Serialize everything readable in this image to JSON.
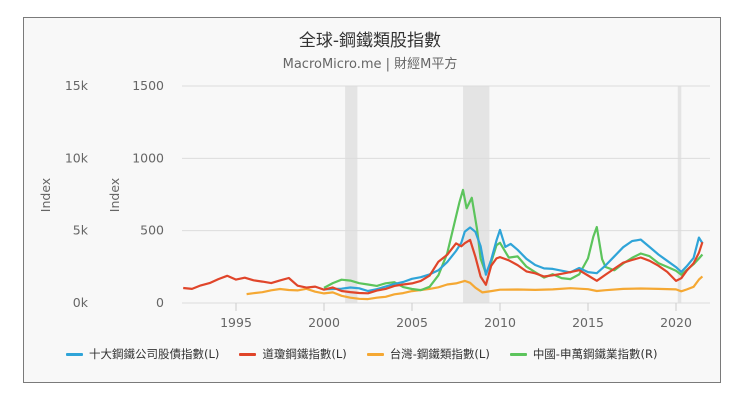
{
  "chart_data": {
    "type": "line",
    "title": "全球-鋼鐵類股指數",
    "subtitle": "MacroMicro.me | 財經M平方",
    "xlabel": "",
    "x_ticks": [
      "1995",
      "2000",
      "2005",
      "2010",
      "2015",
      "2020"
    ],
    "xlim": [
      1992,
      2021.8
    ],
    "y_axes": [
      {
        "id": "L1",
        "title": "Index",
        "ticks": [
          "0k",
          "5k",
          "10k",
          "15k"
        ],
        "range": [
          0,
          15000
        ]
      },
      {
        "id": "L2",
        "title": "Index",
        "ticks": [
          "0",
          "500",
          "1000",
          "1500"
        ],
        "range": [
          0,
          1500
        ]
      }
    ],
    "grid": true,
    "legend_position": "bottom",
    "recession_bands": [
      [
        2001.2,
        2001.9
      ],
      [
        2007.9,
        2009.4
      ],
      [
        2020.1,
        2020.3
      ]
    ],
    "series": [
      {
        "name": "十大鋼鐵公司股債指數(L)",
        "color": "#2fa4d8",
        "axis": "left",
        "x": [
          2000.0,
          2000.5,
          2001.0,
          2001.5,
          2002.0,
          2002.5,
          2003.0,
          2003.5,
          2004.0,
          2004.5,
          2005.0,
          2005.5,
          2006.0,
          2006.5,
          2007.0,
          2007.5,
          2007.8,
          2008.0,
          2008.3,
          2008.6,
          2008.9,
          2009.2,
          2009.5,
          2009.8,
          2010.0,
          2010.3,
          2010.6,
          2011.0,
          2011.5,
          2012.0,
          2012.5,
          2013.0,
          2013.5,
          2014.0,
          2014.5,
          2015.0,
          2015.5,
          2016.0,
          2016.5,
          2017.0,
          2017.5,
          2018.0,
          2018.5,
          2019.0,
          2019.5,
          2020.0,
          2020.3,
          2020.6,
          2021.0,
          2021.3,
          2021.5
        ],
        "values": [
          950,
          1000,
          1050,
          1150,
          1100,
          900,
          1000,
          1150,
          1300,
          1400,
          1600,
          1700,
          1900,
          2200,
          2800,
          3600,
          4200,
          5000,
          5300,
          5000,
          4000,
          2000,
          3000,
          4300,
          5000,
          3800,
          4000,
          3600,
          3000,
          2600,
          2400,
          2400,
          2300,
          2200,
          2500,
          2200,
          2100,
          2600,
          3200,
          3800,
          4200,
          4300,
          3800,
          3300,
          2900,
          2500,
          2200,
          2600,
          3200,
          4600,
          4200
        ]
      },
      {
        "name": "道瓊鋼鐵指數(L)",
        "color": "#e0452a",
        "axis": "left",
        "x": [
          1992.0,
          1992.5,
          1993.0,
          1993.5,
          1994.0,
          1994.5,
          1995.0,
          1995.5,
          1996.0,
          1996.5,
          1997.0,
          1997.5,
          1998.0,
          1998.5,
          1999.0,
          1999.5,
          2000.0,
          2000.5,
          2001.0,
          2001.5,
          2002.0,
          2002.5,
          2003.0,
          2003.5,
          2004.0,
          2004.5,
          2005.0,
          2005.5,
          2006.0,
          2006.5,
          2007.0,
          2007.5,
          2007.8,
          2008.0,
          2008.3,
          2008.6,
          2008.9,
          2009.2,
          2009.5,
          2009.8,
          2010.0,
          2010.5,
          2011.0,
          2011.5,
          2012.0,
          2012.5,
          2013.0,
          2013.5,
          2014.0,
          2014.5,
          2015.0,
          2015.5,
          2016.0,
          2016.5,
          2017.0,
          2017.5,
          2018.0,
          2018.5,
          2019.0,
          2019.5,
          2020.0,
          2020.3,
          2020.6,
          2021.0,
          2021.3,
          2021.5
        ],
        "values": [
          1100,
          1050,
          1300,
          1450,
          1700,
          1900,
          1600,
          1700,
          1500,
          1400,
          1300,
          1500,
          1700,
          1200,
          1100,
          1200,
          1000,
          1150,
          900,
          800,
          700,
          650,
          800,
          900,
          1100,
          1200,
          1300,
          1500,
          1900,
          2900,
          3400,
          4200,
          4000,
          4200,
          4400,
          3200,
          1800,
          1200,
          2500,
          3000,
          3100,
          2900,
          2600,
          2200,
          2100,
          1900,
          2000,
          2100,
          2200,
          2300,
          1900,
          1500,
          1900,
          2300,
          2700,
          2900,
          3100,
          2900,
          2600,
          2200,
          1600,
          1800,
          2300,
          2800,
          3500,
          4200
        ]
      },
      {
        "name": "台灣-鋼鐵類指數(L)",
        "color": "#f5a833",
        "axis": "left",
        "x": [
          1995.6,
          1996.0,
          1996.5,
          1997.0,
          1997.5,
          1998.0,
          1998.5,
          1999.0,
          1999.5,
          2000.0,
          2000.5,
          2001.0,
          2001.5,
          2002.0,
          2002.5,
          2003.0,
          2003.5,
          2004.0,
          2004.5,
          2005.0,
          2005.5,
          2006.0,
          2006.5,
          2007.0,
          2007.5,
          2008.0,
          2008.3,
          2008.6,
          2009.0,
          2009.5,
          2010.0,
          2011.0,
          2012.0,
          2013.0,
          2014.0,
          2015.0,
          2015.5,
          2016.0,
          2017.0,
          2018.0,
          2019.0,
          2020.0,
          2020.3,
          2020.6,
          2021.0,
          2021.3,
          2021.5
        ],
        "values": [
          700,
          750,
          800,
          900,
          950,
          850,
          800,
          900,
          700,
          600,
          700,
          500,
          400,
          350,
          350,
          450,
          500,
          650,
          700,
          800,
          850,
          900,
          1000,
          1200,
          1300,
          1500,
          1400,
          1100,
          800,
          900,
          1000,
          1000,
          950,
          950,
          1000,
          900,
          750,
          800,
          900,
          950,
          950,
          950,
          850,
          1000,
          1200,
          1700,
          1900
        ]
      },
      {
        "name": "中國-申萬鋼鐵業指數(R)",
        "color": "#5cc45c",
        "axis": "right",
        "x": [
          2000.0,
          2000.5,
          2001.0,
          2001.5,
          2002.0,
          2002.5,
          2003.0,
          2003.5,
          2004.0,
          2004.5,
          2005.0,
          2005.5,
          2006.0,
          2006.5,
          2007.0,
          2007.4,
          2007.7,
          2007.9,
          2008.1,
          2008.4,
          2008.7,
          2008.9,
          2009.2,
          2009.5,
          2009.8,
          2010.0,
          2010.5,
          2011.0,
          2011.5,
          2012.0,
          2012.5,
          2013.0,
          2013.5,
          2014.0,
          2014.5,
          2015.0,
          2015.3,
          2015.5,
          2015.8,
          2016.0,
          2016.5,
          2017.0,
          2017.5,
          2018.0,
          2018.5,
          2019.0,
          2019.5,
          2020.0,
          2020.3,
          2020.6,
          2021.0,
          2021.3,
          2021.5
        ],
        "values": [
          110,
          140,
          160,
          150,
          130,
          120,
          110,
          130,
          140,
          110,
          100,
          95,
          120,
          200,
          350,
          550,
          700,
          780,
          650,
          720,
          500,
          300,
          200,
          280,
          400,
          420,
          320,
          330,
          260,
          220,
          180,
          200,
          170,
          160,
          190,
          300,
          450,
          520,
          300,
          250,
          230,
          280,
          320,
          350,
          330,
          280,
          250,
          220,
          190,
          220,
          260,
          300,
          330
        ]
      }
    ]
  },
  "legend": [
    {
      "label": "十大鋼鐵公司股債指數(L)",
      "color": "#2fa4d8"
    },
    {
      "label": "道瓊鋼鐵指數(L)",
      "color": "#e0452a"
    },
    {
      "label": "台灣-鋼鐵類指數(L)",
      "color": "#f5a833"
    },
    {
      "label": "中國-申萬鋼鐵業指數(R)",
      "color": "#5cc45c"
    }
  ]
}
